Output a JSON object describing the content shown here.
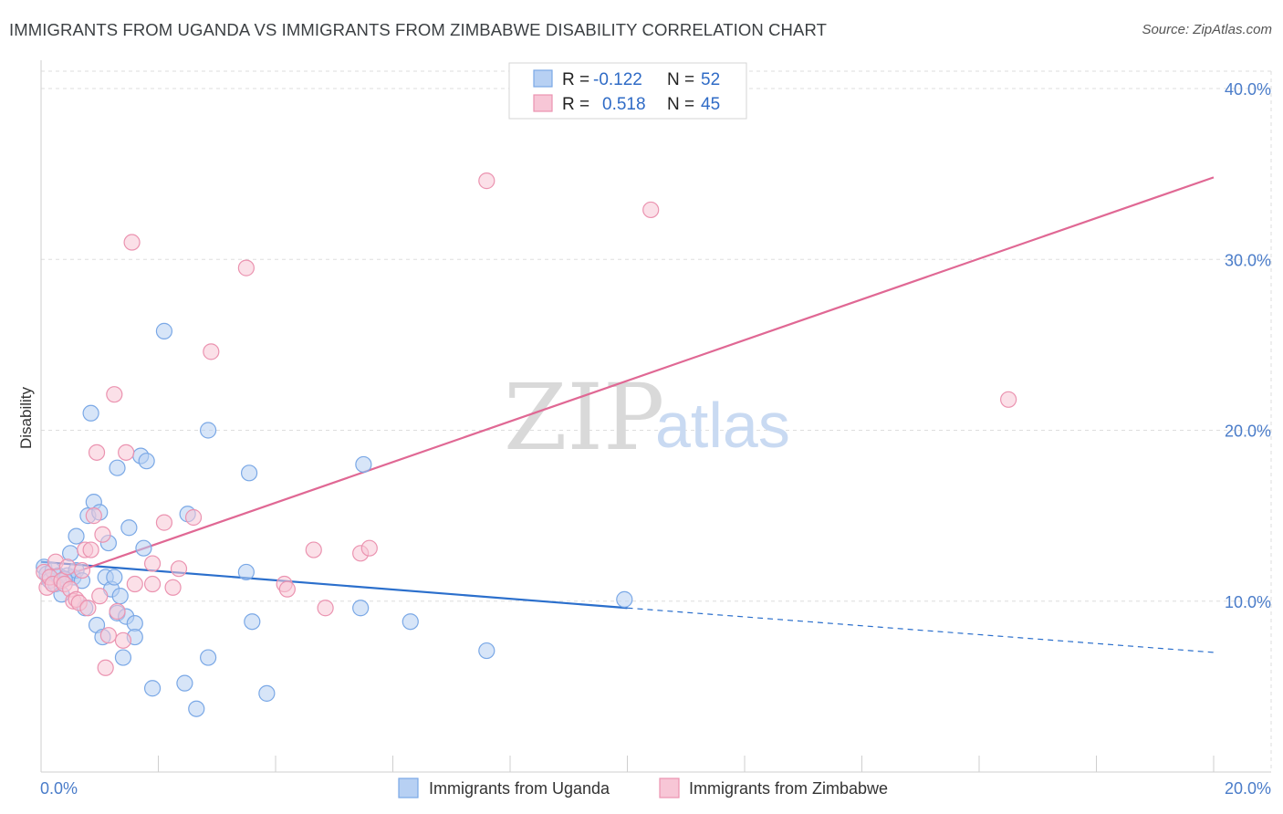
{
  "chart_data": {
    "type": "scatter",
    "title": "IMMIGRANTS FROM UGANDA VS IMMIGRANTS FROM ZIMBABWE DISABILITY CORRELATION CHART",
    "source": "Source: ZipAtlas.com",
    "ylabel": "Disability",
    "xlim": [
      0,
      20
    ],
    "ylim": [
      0,
      40
    ],
    "x_tick_labels": [
      "0.0%",
      "20.0%"
    ],
    "y_ticks": [
      10,
      20,
      30,
      40
    ],
    "y_tick_labels": [
      "10.0%",
      "20.0%",
      "30.0%",
      "40.0%"
    ],
    "watermark": {
      "part1": "ZIP",
      "part2": "atlas"
    },
    "legend": {
      "rows": [
        {
          "r_label": "R =",
          "r_value": "-0.122",
          "n_label": "N =",
          "n_value": "52"
        },
        {
          "r_label": "R =",
          "r_value": "0.518",
          "n_label": "N =",
          "n_value": "45"
        }
      ]
    },
    "series": [
      {
        "name": "Immigrants from Uganda",
        "color": "#7aa8e6",
        "fill": "#b7d0f3",
        "line_color": "#2b6fcc",
        "trend": {
          "x0": 0,
          "y0": 12.3,
          "x1": 10.0,
          "y1": 9.6,
          "dash_to_x": 20,
          "dash_to_y": 7.0
        },
        "points": [
          [
            0.05,
            12.0
          ],
          [
            0.1,
            11.6
          ],
          [
            0.15,
            11.2
          ],
          [
            0.2,
            11.8
          ],
          [
            0.25,
            11.0
          ],
          [
            0.3,
            11.5
          ],
          [
            0.35,
            10.4
          ],
          [
            0.45,
            11.5
          ],
          [
            0.5,
            12.8
          ],
          [
            0.55,
            11.4
          ],
          [
            0.6,
            11.8
          ],
          [
            0.6,
            13.8
          ],
          [
            0.7,
            11.2
          ],
          [
            0.75,
            9.6
          ],
          [
            0.8,
            15.0
          ],
          [
            0.85,
            21.0
          ],
          [
            0.9,
            15.8
          ],
          [
            0.95,
            8.6
          ],
          [
            1.0,
            15.2
          ],
          [
            1.05,
            7.9
          ],
          [
            1.1,
            11.4
          ],
          [
            1.15,
            13.4
          ],
          [
            1.2,
            10.7
          ],
          [
            1.25,
            11.4
          ],
          [
            1.3,
            9.3
          ],
          [
            1.3,
            17.8
          ],
          [
            1.35,
            10.3
          ],
          [
            1.4,
            6.7
          ],
          [
            1.45,
            9.1
          ],
          [
            1.5,
            14.3
          ],
          [
            1.6,
            8.7
          ],
          [
            1.6,
            7.9
          ],
          [
            1.7,
            18.5
          ],
          [
            1.75,
            13.1
          ],
          [
            1.8,
            18.2
          ],
          [
            1.9,
            4.9
          ],
          [
            2.1,
            25.8
          ],
          [
            2.45,
            5.2
          ],
          [
            2.5,
            15.1
          ],
          [
            2.65,
            3.7
          ],
          [
            2.85,
            20.0
          ],
          [
            2.85,
            6.7
          ],
          [
            3.5,
            11.7
          ],
          [
            3.55,
            17.5
          ],
          [
            3.6,
            8.8
          ],
          [
            3.85,
            4.6
          ],
          [
            5.45,
            9.6
          ],
          [
            5.5,
            18.0
          ],
          [
            6.3,
            8.8
          ],
          [
            7.6,
            7.1
          ],
          [
            9.95,
            10.1
          ],
          [
            0.4,
            11.3
          ]
        ]
      },
      {
        "name": "Immigrants from Zimbabwe",
        "color": "#eb93b0",
        "fill": "#f7c6d6",
        "line_color": "#e06894",
        "trend": {
          "x0": 0,
          "y0": 11.0,
          "x1": 20,
          "y1": 34.8
        },
        "points": [
          [
            0.05,
            11.7
          ],
          [
            0.1,
            10.8
          ],
          [
            0.15,
            11.4
          ],
          [
            0.2,
            11.0
          ],
          [
            0.25,
            12.3
          ],
          [
            0.35,
            11.2
          ],
          [
            0.4,
            11.0
          ],
          [
            0.45,
            12.0
          ],
          [
            0.5,
            10.7
          ],
          [
            0.55,
            10.0
          ],
          [
            0.6,
            10.1
          ],
          [
            0.65,
            9.9
          ],
          [
            0.7,
            11.8
          ],
          [
            0.75,
            13.0
          ],
          [
            0.8,
            9.6
          ],
          [
            0.85,
            13.0
          ],
          [
            0.9,
            15.0
          ],
          [
            0.95,
            18.7
          ],
          [
            1.0,
            10.3
          ],
          [
            1.05,
            13.9
          ],
          [
            1.1,
            6.1
          ],
          [
            1.15,
            8.0
          ],
          [
            1.3,
            9.4
          ],
          [
            1.4,
            7.7
          ],
          [
            1.45,
            18.7
          ],
          [
            1.55,
            31.0
          ],
          [
            1.6,
            11.0
          ],
          [
            1.9,
            12.2
          ],
          [
            1.9,
            11.0
          ],
          [
            2.1,
            14.6
          ],
          [
            2.25,
            10.8
          ],
          [
            2.35,
            11.9
          ],
          [
            2.6,
            14.9
          ],
          [
            2.9,
            24.6
          ],
          [
            3.5,
            29.5
          ],
          [
            4.15,
            11.0
          ],
          [
            4.2,
            10.7
          ],
          [
            4.65,
            13.0
          ],
          [
            4.85,
            9.6
          ],
          [
            5.45,
            12.8
          ],
          [
            5.6,
            13.1
          ],
          [
            7.6,
            34.6
          ],
          [
            10.4,
            32.9
          ],
          [
            16.5,
            21.8
          ],
          [
            1.25,
            22.1
          ]
        ]
      }
    ]
  }
}
